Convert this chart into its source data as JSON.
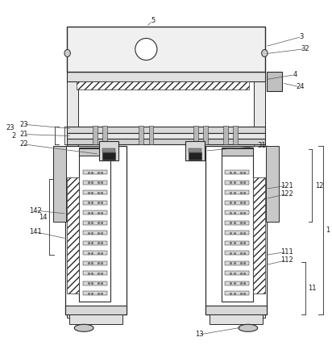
{
  "bg_color": "#ffffff",
  "line_color": "#2a2a2a",
  "label_color": "#1a1a1a",
  "fig_width": 4.12,
  "fig_height": 4.44,
  "dpi": 100
}
